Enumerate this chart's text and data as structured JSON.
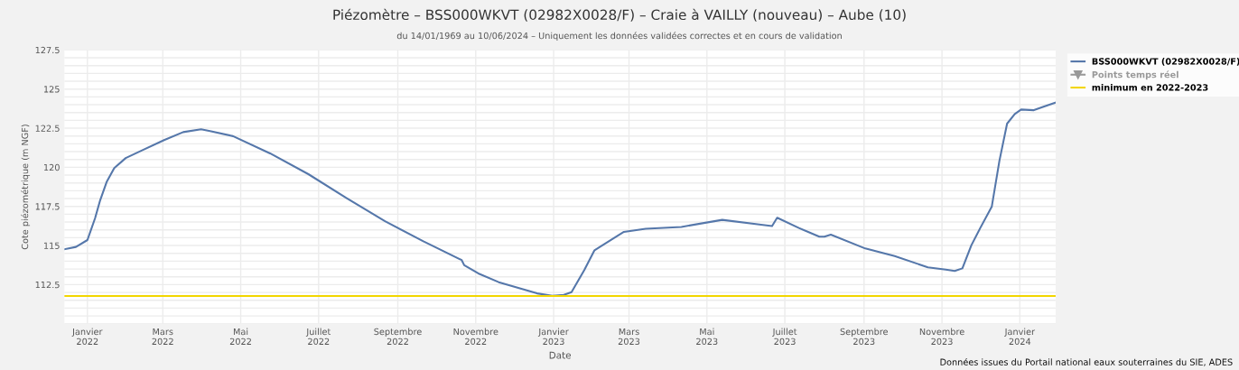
{
  "chart_data": {
    "type": "line",
    "title": "Piézomètre – BSS000WKVT (02982X0028/F) – Craie à VAILLY (nouveau) – Aube (10)",
    "subtitle": "du 14/01/1969 au 10/06/2024 – Uniquement les données validées correctes et en cours de validation",
    "xlabel": "Date",
    "ylabel": "Cote piézométrique (m NGF)",
    "annotations": [
      "Données issues du Portail national eaux souterraines du SIE, ADES"
    ],
    "xlim": [
      "2021-12-14",
      "2024-01-29"
    ],
    "xticks": [
      {
        "value": "2022-01-01",
        "label": "Janvier\n2022"
      },
      {
        "value": "2022-03-01",
        "label": "Mars\n2022"
      },
      {
        "value": "2022-05-01",
        "label": "Mai\n2022"
      },
      {
        "value": "2022-07-01",
        "label": "Juillet\n2022"
      },
      {
        "value": "2022-09-01",
        "label": "Septembre\n2022"
      },
      {
        "value": "2022-11-01",
        "label": "Novembre\n2022"
      },
      {
        "value": "2023-01-01",
        "label": "Janvier\n2023"
      },
      {
        "value": "2023-03-01",
        "label": "Mars\n2023"
      },
      {
        "value": "2023-05-01",
        "label": "Mai\n2023"
      },
      {
        "value": "2023-07-01",
        "label": "Juillet\n2023"
      },
      {
        "value": "2023-09-01",
        "label": "Septembre\n2023"
      },
      {
        "value": "2023-11-01",
        "label": "Novembre\n2023"
      },
      {
        "value": "2024-01-01",
        "label": "Janvier\n2024"
      }
    ],
    "ylim": [
      110,
      127.5
    ],
    "yticks": [
      {
        "value": 110,
        "label": null
      },
      {
        "value": 110.5,
        "label": null
      },
      {
        "value": 111,
        "label": null
      },
      {
        "value": 111.5,
        "label": null
      },
      {
        "value": 112,
        "label": null
      },
      112.5,
      {
        "value": 113,
        "label": null
      },
      {
        "value": 113.5,
        "label": null
      },
      {
        "value": 114,
        "label": null
      },
      {
        "value": 114.5,
        "label": null
      },
      115,
      {
        "value": 115.5,
        "label": null
      },
      {
        "value": 116,
        "label": null
      },
      {
        "value": 116.5,
        "label": null
      },
      {
        "value": 117,
        "label": null
      },
      117.5,
      {
        "value": 118,
        "label": null
      },
      {
        "value": 118.5,
        "label": null
      },
      {
        "value": 119,
        "label": null
      },
      {
        "value": 119.5,
        "label": null
      },
      120,
      {
        "value": 120.5,
        "label": null
      },
      {
        "value": 121,
        "label": null
      },
      {
        "value": 121.5,
        "label": null
      },
      {
        "value": 122,
        "label": null
      },
      122.5,
      {
        "value": 123,
        "label": null
      },
      {
        "value": 123.5,
        "label": null
      },
      {
        "value": 124,
        "label": null
      },
      {
        "value": 124.5,
        "label": null
      },
      125,
      {
        "value": 125.5,
        "label": null
      },
      {
        "value": 126,
        "label": null
      },
      {
        "value": 126.5,
        "label": null
      },
      {
        "value": 127,
        "label": null
      },
      127.5
    ],
    "grid": true,
    "legend": "right",
    "marker": "none",
    "line_style": "solid",
    "ref_lines": [
      {
        "axis": "y",
        "value": 111.77,
        "label": "minimum en 2022-2023",
        "color": "#f2d600"
      }
    ],
    "series": [
      {
        "name": "BSS000WKVT (02982X0028/F)",
        "color": "#5577aa",
        "x": [
          "2021-12-14",
          "2021-12-23",
          "2022-01-01",
          "2022-01-07",
          "2022-01-11",
          "2022-01-16",
          "2022-01-22",
          "2022-01-31",
          "2022-02-12",
          "2022-03-02",
          "2022-03-17",
          "2022-03-31",
          "2022-04-07",
          "2022-04-25",
          "2022-05-24",
          "2022-06-23",
          "2022-07-23",
          "2022-08-22",
          "2022-09-21",
          "2022-10-21",
          "2022-10-23",
          "2022-11-03",
          "2022-11-19",
          "2022-12-19",
          "2022-12-31",
          "2023-01-09",
          "2023-01-15",
          "2023-01-25",
          "2023-02-02",
          "2023-02-07",
          "2023-02-25",
          "2023-03-14",
          "2023-04-11",
          "2023-05-13",
          "2023-06-11",
          "2023-06-21",
          "2023-06-25",
          "2023-07-12",
          "2023-07-28",
          "2023-08-01",
          "2023-08-06",
          "2023-09-02",
          "2023-09-25",
          "2023-10-21",
          "2023-11-04",
          "2023-11-11",
          "2023-11-17",
          "2023-11-24",
          "2023-12-01",
          "2023-12-10",
          "2023-12-16",
          "2023-12-22",
          "2023-12-28",
          "2024-01-02",
          "2024-01-12",
          "2024-01-19",
          "2024-01-29"
        ],
        "values": [
          114.76,
          114.91,
          115.35,
          116.75,
          117.9,
          119.05,
          119.95,
          120.59,
          121.05,
          121.74,
          122.25,
          122.43,
          122.32,
          121.99,
          120.89,
          119.56,
          118.03,
          116.55,
          115.27,
          114.07,
          113.74,
          113.22,
          112.66,
          111.94,
          111.79,
          111.84,
          112.02,
          113.43,
          114.7,
          114.96,
          115.87,
          116.07,
          116.19,
          116.64,
          116.34,
          116.24,
          116.78,
          116.12,
          115.57,
          115.57,
          115.7,
          114.81,
          114.32,
          113.61,
          113.46,
          113.37,
          113.54,
          115.01,
          116.12,
          117.48,
          120.42,
          122.79,
          123.4,
          123.69,
          123.65,
          123.86,
          124.14
        ]
      },
      {
        "name": "Points temps réel",
        "color": "#999999",
        "marker": "triangle"
      }
    ]
  }
}
